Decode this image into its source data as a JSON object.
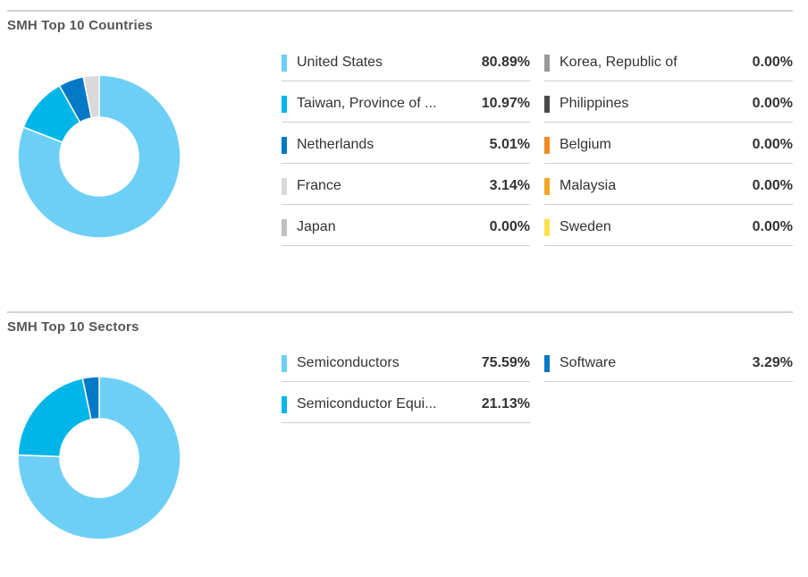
{
  "colors": {
    "light_blue": "#6ecff6",
    "cyan": "#00b5e8",
    "blue": "#0179c6",
    "light_gray": "#d9d9d9",
    "gray": "#bfbfbf",
    "mid_gray": "#999999",
    "dark_gray": "#4a4a4a",
    "orange": "#f08b22",
    "amber": "#f2a81d",
    "yellow": "#fde14b"
  },
  "chart_data": [
    {
      "type": "pie",
      "title": "SMH Top 10 Countries",
      "donut": true,
      "categories": [
        "United States",
        "Taiwan, Province of ...",
        "Netherlands",
        "France",
        "Japan",
        "Korea, Republic of",
        "Philippines",
        "Belgium",
        "Malaysia",
        "Sweden"
      ],
      "values": [
        80.89,
        10.97,
        5.01,
        3.14,
        0.0,
        0.0,
        0.0,
        0.0,
        0.0,
        0.0
      ],
      "labels": [
        "80.89%",
        "10.97%",
        "5.01%",
        "3.14%",
        "0.00%",
        "0.00%",
        "0.00%",
        "0.00%",
        "0.00%",
        "0.00%"
      ],
      "colors": [
        "#6ecff6",
        "#00b5e8",
        "#0179c6",
        "#d9d9d9",
        "#bfbfbf",
        "#999999",
        "#4a4a4a",
        "#f08b22",
        "#f2a81d",
        "#fde14b"
      ]
    },
    {
      "type": "pie",
      "title": "SMH Top 10 Sectors",
      "donut": true,
      "categories": [
        "Semiconductors",
        "Semiconductor Equi...",
        "Software"
      ],
      "values": [
        75.59,
        21.13,
        3.29
      ],
      "labels": [
        "75.59%",
        "21.13%",
        "3.29%"
      ],
      "colors": [
        "#6ecff6",
        "#00b5e8",
        "#0179c6"
      ]
    }
  ]
}
